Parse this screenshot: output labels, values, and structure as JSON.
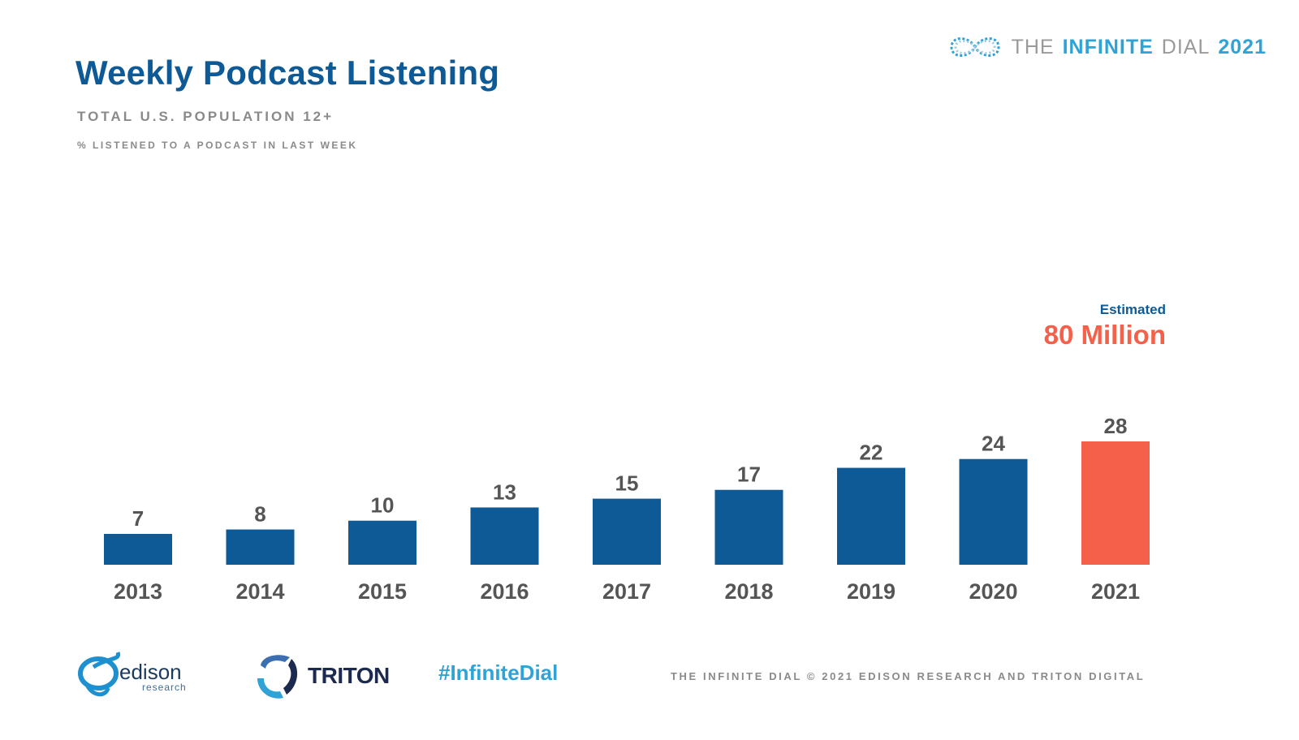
{
  "header": {
    "title": "Weekly Podcast Listening",
    "subtitle": "TOTAL U.S. POPULATION 12+",
    "subsubtitle": "% LISTENED TO A PODCAST IN LAST WEEK"
  },
  "brand": {
    "the": "THE",
    "infinite": "INFINITE",
    "dial": "DIAL",
    "year": "2021",
    "icon": "infinity-icon"
  },
  "callout": {
    "label": "Estimated",
    "value": "80 Million"
  },
  "chart_data": {
    "type": "bar",
    "categories": [
      "2013",
      "2014",
      "2015",
      "2016",
      "2017",
      "2018",
      "2019",
      "2020",
      "2021"
    ],
    "values": [
      7,
      8,
      10,
      13,
      15,
      17,
      22,
      24,
      28
    ],
    "highlight_index": 8,
    "colors": {
      "bar": "#0d5a96",
      "highlight": "#f5604a",
      "label": "#555555"
    },
    "title": "",
    "xlabel": "",
    "ylabel": "",
    "ylim": [
      0,
      28
    ],
    "grid": false,
    "legend": "none"
  },
  "footer": {
    "edison_name": "edison",
    "edison_sub": "research",
    "triton_name": "TRITON",
    "hashtag": "#InfiniteDial",
    "copyright": "THE INFINITE DIAL   © 2021 EDISON RESEARCH AND TRITON DIGITAL"
  }
}
